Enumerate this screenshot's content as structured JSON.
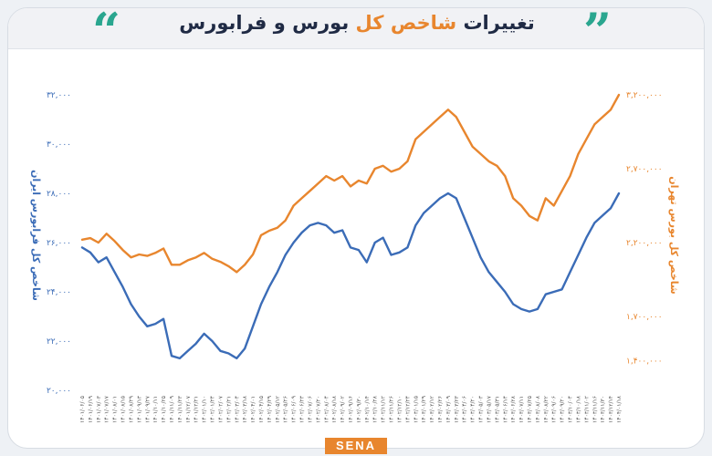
{
  "header": {
    "title_prefix": "تغییرات",
    "title_accent": "شاخص کل",
    "title_suffix": "بورس و فرابورس",
    "quote_left": "“",
    "quote_right": "”"
  },
  "footer": {
    "brand": "SENA"
  },
  "colors": {
    "bourse": "#e8862e",
    "farabourse": "#3b6cb7",
    "accent": "#2aa68f",
    "title": "#1f2a44"
  },
  "chart_data": {
    "type": "line",
    "left_axis": {
      "label": "شاخص کل فرابورس ایران",
      "ticks": [
        "۳۲,۰۰۰",
        "۳۰,۰۰۰",
        "۲۸,۰۰۰",
        "۲۶,۰۰۰",
        "۲۴,۰۰۰",
        "۲۲,۰۰۰",
        "۲۰,۰۰۰"
      ],
      "tick_values": [
        32000,
        30000,
        28000,
        26000,
        24000,
        22000,
        20000
      ],
      "range": [
        20000,
        32000
      ]
    },
    "right_axis": {
      "label": "شاخص کل بورس تهران",
      "ticks": [
        "۳,۲۰۰,۰۰۰",
        "۲,۷۰۰,۰۰۰",
        "۲,۲۰۰,۰۰۰",
        "۱,۷۰۰,۰۰۰",
        "۱,۴۰۰,۰۰۰"
      ],
      "tick_values": [
        3200000,
        2700000,
        2200000,
        1700000,
        1400000
      ],
      "range": [
        1200000,
        3200000
      ]
    },
    "x_labels": [
      "۱۴۰۱/۰۶/۰۵",
      "۱۴۰۱/۰۶/۱۹",
      "۱۴۰۱/۰۷/۰۳",
      "۱۴۰۱/۰۷/۱۷",
      "۱۴۰۱/۰۸/۰۱",
      "۱۴۰۱/۰۸/۱۵",
      "۱۴۰۱/۰۸/۲۹",
      "۱۴۰۱/۰۹/۱۳",
      "۱۴۰۱/۰۹/۲۷",
      "۱۴۰۱/۱۰/۱۱",
      "۱۴۰۱/۱۰/۲۵",
      "۱۴۰۱/۱۱/۰۹",
      "۱۴۰۱/۱۱/۲۳",
      "۱۴۰۱/۱۲/۰۷",
      "۱۴۰۱/۱۲/۲۱",
      "۱۴۰۲/۰۱/۱۰",
      "۱۴۰۲/۰۱/۲۴",
      "۱۴۰۲/۰۲/۰۷",
      "۱۴۰۲/۰۲/۲۱",
      "۱۴۰۲/۰۳/۰۴",
      "۱۴۰۲/۰۳/۱۸",
      "۱۴۰۲/۰۴/۰۱",
      "۱۴۰۲/۰۴/۱۵",
      "۱۴۰۲/۰۴/۲۹",
      "۱۴۰۲/۰۵/۱۲",
      "۱۴۰۲/۰۵/۲۶",
      "۱۴۰۲/۰۶/۰۹",
      "۱۴۰۲/۰۶/۲۳",
      "۱۴۰۲/۰۷/۰۶",
      "۱۴۰۲/۰۷/۲۰",
      "۱۴۰۲/۰۸/۰۴",
      "۱۴۰۲/۰۸/۱۸",
      "۱۴۰۲/۰۹/۰۲",
      "۱۴۰۲/۰۹/۱۶",
      "۱۴۰۲/۰۹/۳۰",
      "۱۴۰۲/۱۰/۱۴",
      "۱۴۰۲/۱۰/۲۸",
      "۱۴۰۲/۱۱/۱۲",
      "۱۴۰۲/۱۱/۲۶",
      "۱۴۰۲/۱۲/۱۰",
      "۱۴۰۲/۱۲/۲۴",
      "۱۴۰۳/۰۱/۱۵",
      "۱۴۰۳/۰۱/۲۹",
      "۱۴۰۳/۰۲/۱۲",
      "۱۴۰۳/۰۲/۲۶",
      "۱۴۰۳/۰۳/۰۹",
      "۱۴۰۳/۰۳/۲۳",
      "۱۴۰۳/۰۴/۰۶",
      "۱۴۰۳/۰۴/۲۰",
      "۱۴۰۳/۰۵/۰۳",
      "۱۴۰۳/۰۵/۱۷",
      "۱۴۰۳/۰۵/۳۱",
      "۱۴۰۳/۰۶/۱۴",
      "۱۴۰۳/۰۶/۲۸",
      "۱۴۰۳/۰۷/۱۱",
      "۱۴۰۳/۰۷/۲۵",
      "۱۴۰۳/۰۸/۰۸",
      "۱۴۰۳/۰۸/۲۲",
      "۱۴۰۳/۰۹/۰۶",
      "۱۴۰۳/۰۹/۲۰",
      "۱۴۰۳/۱۰/۰۴",
      "۱۴۰۳/۱۰/۱۸",
      "۱۴۰۳/۱۱/۰۲",
      "۱۴۰۳/۱۱/۱۶",
      "۱۴۰۳/۱۱/۳۰",
      "۱۴۰۳/۱۲/۱۴",
      "۱۴۰۴/۰۱/۱۸"
    ],
    "series": [
      {
        "name": "شاخص کل بورس تهران",
        "axis": "right",
        "color": "#e8862e",
        "values": [
          2220000,
          2230000,
          2200000,
          2260000,
          2210000,
          2150000,
          2100000,
          2120000,
          2110000,
          2130000,
          2160000,
          2050000,
          2050000,
          2080000,
          2100000,
          2130000,
          2090000,
          2070000,
          2040000,
          2000000,
          2050000,
          2120000,
          2250000,
          2280000,
          2300000,
          2350000,
          2450000,
          2500000,
          2550000,
          2600000,
          2650000,
          2620000,
          2650000,
          2580000,
          2620000,
          2600000,
          2700000,
          2720000,
          2680000,
          2700000,
          2750000,
          2900000,
          2950000,
          3000000,
          3050000,
          3100000,
          3050000,
          2950000,
          2850000,
          2800000,
          2750000,
          2720000,
          2650000,
          2500000,
          2450000,
          2380000,
          2350000,
          2500000,
          2450000,
          2550000,
          2650000,
          2800000,
          2900000,
          3000000,
          3050000,
          3100000,
          3200000
        ]
      },
      {
        "name": "شاخص کل فرابورس ایران",
        "axis": "left",
        "color": "#3b6cb7",
        "values": [
          25800,
          25600,
          25200,
          25400,
          24800,
          24200,
          23500,
          23000,
          22600,
          22700,
          22900,
          21400,
          21300,
          21600,
          21900,
          22300,
          22000,
          21600,
          21500,
          21300,
          21700,
          22600,
          23500,
          24200,
          24800,
          25500,
          26000,
          26400,
          26700,
          26800,
          26700,
          26400,
          26500,
          25800,
          25700,
          25200,
          26000,
          26200,
          25500,
          25600,
          25800,
          26700,
          27200,
          27500,
          27800,
          28000,
          27800,
          27000,
          26200,
          25400,
          24800,
          24400,
          24000,
          23500,
          23300,
          23200,
          23300,
          23900,
          24000,
          24100,
          24800,
          25500,
          26200,
          26800,
          27100,
          27400,
          28000
        ]
      }
    ],
    "grid": false,
    "legend": "none"
  }
}
